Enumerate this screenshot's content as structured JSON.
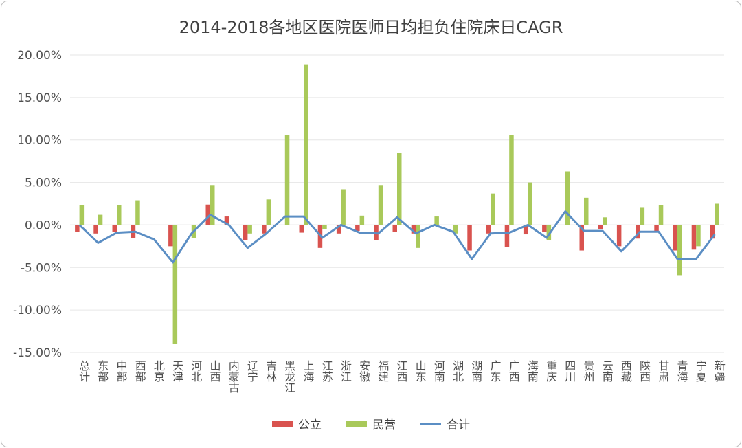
{
  "chart_data": {
    "type": "bar",
    "title": "2014-2018各地区医院医师日均担负住院床日CAGR",
    "categories": [
      "总计",
      "东部",
      "中部",
      "西部",
      "北京",
      "天津",
      "河北",
      "山西",
      "内蒙古",
      "辽宁",
      "吉林",
      "黑龙江",
      "上海",
      "江苏",
      "浙江",
      "安徽",
      "福建",
      "江西",
      "山东",
      "河南",
      "湖北",
      "湖南",
      "广东",
      "广西",
      "海南",
      "重庆",
      "四川",
      "贵州",
      "云南",
      "西藏",
      "陕西",
      "甘肃",
      "青海",
      "宁夏",
      "新疆"
    ],
    "y_ticks": [
      "20.00%",
      "15.00%",
      "10.00%",
      "5.00%",
      "0.00%",
      "-5.00%",
      "-10.00%",
      "-15.00%"
    ],
    "ylim": [
      -15,
      20
    ],
    "grid": true,
    "legend_position": "bottom",
    "series": [
      {
        "name": "公立",
        "kind": "bar",
        "color": "#d9534f",
        "values": [
          -0.8,
          -1.0,
          -0.8,
          -1.5,
          0,
          -2.5,
          0,
          2.4,
          1.0,
          -1.8,
          -1.0,
          0,
          -0.9,
          -2.7,
          -1.0,
          -0.7,
          -1.8,
          -0.8,
          -1.0,
          0,
          0,
          -3.0,
          -1.0,
          -2.6,
          -1.1,
          -0.8,
          0,
          -3.0,
          -0.5,
          -2.5,
          -1.6,
          -0.8,
          -3.0,
          -2.9,
          -1.6
        ]
      },
      {
        "name": "民营",
        "kind": "bar",
        "color": "#a9c95a",
        "values": [
          2.3,
          1.2,
          2.3,
          2.9,
          0,
          -14.0,
          -1.5,
          4.7,
          0,
          -1.0,
          3.0,
          10.6,
          18.9,
          -0.5,
          4.2,
          1.1,
          4.7,
          8.5,
          -2.7,
          1.0,
          -1.0,
          0,
          3.7,
          10.6,
          5.0,
          -1.8,
          6.3,
          3.2,
          0.9,
          0,
          2.1,
          2.3,
          -5.9,
          -2.5,
          2.5
        ]
      },
      {
        "name": "合计",
        "kind": "line",
        "color": "#5b8ec4",
        "values": [
          0,
          -2.1,
          -0.9,
          -0.8,
          -1.7,
          -4.4,
          -1.0,
          1.2,
          0,
          -2.7,
          -1.0,
          1.0,
          1.0,
          -1.5,
          0,
          -0.9,
          -1.0,
          0.9,
          -1.0,
          0,
          -0.8,
          -4.0,
          -1.0,
          -0.9,
          0,
          -1.5,
          1.6,
          -0.7,
          -0.7,
          -3.1,
          -0.8,
          -0.8,
          -4.0,
          -4.0,
          -1.1
        ]
      }
    ]
  }
}
